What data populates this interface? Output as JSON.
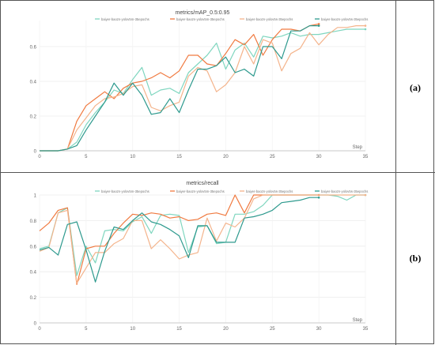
{
  "charts": [
    {
      "panel_label": "(a)",
      "title": "metrics/mAP_0.5:0.95",
      "legend": [
        "baiyer-baozn-yolov5m-35epochs",
        "baiyer-baozn-yolov5m-35epochs",
        "baiyer-baozn-yolov5s-35epochs",
        "baiyer-baozn-yolov5s-35epochs"
      ],
      "step_label": "Step",
      "x_ticks": [
        "0",
        "5",
        "10",
        "15",
        "20",
        "25",
        "30",
        "35"
      ],
      "y_ticks": [
        "0",
        "0.2",
        "0.4",
        "0.6"
      ]
    },
    {
      "panel_label": "(b)",
      "title": "metrics/recall",
      "legend": [
        "baiyer-baozn-yolov5m-35epochs",
        "baiyer-baozn-yolov5m-35epochs",
        "baiyer-baozn-yolov5s-35epochs",
        "baiyer-baozn-yolov5s-35epochs"
      ],
      "step_label": "Step",
      "x_ticks": [
        "0",
        "5",
        "10",
        "15",
        "20",
        "25",
        "30",
        "35"
      ],
      "y_ticks": [
        "0",
        "0.2",
        "0.4",
        "0.6",
        "0.8",
        "1"
      ]
    }
  ],
  "chart_data": [
    {
      "type": "line",
      "title": "metrics/mAP_0.5:0.95",
      "xlabel": "Step",
      "ylabel": "",
      "xlim": [
        0,
        35
      ],
      "ylim": [
        0,
        0.75
      ],
      "grid": true,
      "legend_position": "top",
      "series": [
        {
          "name": "baiyer-baozn-yolov5m-35epochs",
          "color": "#7fd6bf",
          "x": [
            0,
            1,
            2,
            3,
            4,
            5,
            6,
            7,
            8,
            9,
            10,
            11,
            12,
            13,
            14,
            15,
            16,
            17,
            18,
            19,
            20,
            21,
            22,
            23,
            24,
            25,
            26,
            27,
            28,
            29,
            30,
            31,
            32,
            33,
            34,
            35
          ],
          "y": [
            0,
            0,
            0,
            0.01,
            0.05,
            0.15,
            0.22,
            0.28,
            0.35,
            0.33,
            0.41,
            0.48,
            0.32,
            0.35,
            0.36,
            0.33,
            0.45,
            0.5,
            0.55,
            0.62,
            0.47,
            0.58,
            0.62,
            0.54,
            0.66,
            0.65,
            0.66,
            0.68,
            0.66,
            0.67,
            0.67,
            0.68,
            0.69,
            0.7,
            0.7,
            0.7
          ]
        },
        {
          "name": "baiyer-baozn-yolov5m-35epochs",
          "color": "#f07a40",
          "x": [
            0,
            1,
            2,
            3,
            4,
            5,
            6,
            7,
            8,
            9,
            10,
            11,
            12,
            13,
            14,
            15,
            16,
            17,
            18,
            19,
            20,
            21,
            22,
            23,
            24,
            25,
            26,
            27,
            28,
            29,
            30
          ],
          "y": [
            0,
            0,
            0,
            0.01,
            0.17,
            0.26,
            0.3,
            0.34,
            0.3,
            0.36,
            0.39,
            0.4,
            0.42,
            0.45,
            0.42,
            0.46,
            0.55,
            0.55,
            0.5,
            0.49,
            0.56,
            0.64,
            0.61,
            0.67,
            0.55,
            0.64,
            0.7,
            0.7,
            0.69,
            0.72,
            0.73
          ]
        },
        {
          "name": "baiyer-baozn-yolov5s-35epochs",
          "color": "#f4b48c",
          "x": [
            0,
            1,
            2,
            3,
            4,
            5,
            6,
            7,
            8,
            9,
            10,
            11,
            12,
            13,
            14,
            15,
            16,
            17,
            18,
            19,
            20,
            21,
            22,
            23,
            24,
            25,
            26,
            27,
            28,
            29,
            30,
            31,
            32,
            33,
            34,
            35
          ],
          "y": [
            0,
            0,
            0,
            0.01,
            0.12,
            0.19,
            0.26,
            0.3,
            0.31,
            0.33,
            0.37,
            0.38,
            0.25,
            0.23,
            0.26,
            0.28,
            0.43,
            0.48,
            0.46,
            0.34,
            0.38,
            0.45,
            0.6,
            0.5,
            0.64,
            0.62,
            0.46,
            0.56,
            0.59,
            0.68,
            0.61,
            0.67,
            0.71,
            0.71,
            0.72,
            0.72
          ]
        },
        {
          "name": "baiyer-baozn-yolov5s-35epochs",
          "color": "#2e9a8e",
          "x": [
            0,
            1,
            2,
            3,
            4,
            5,
            6,
            7,
            8,
            9,
            10,
            11,
            12,
            13,
            14,
            15,
            16,
            17,
            18,
            19,
            20,
            21,
            22,
            23,
            24,
            25,
            26,
            27,
            28,
            29,
            30
          ],
          "y": [
            0,
            0,
            0,
            0.01,
            0.03,
            0.12,
            0.2,
            0.28,
            0.39,
            0.32,
            0.39,
            0.32,
            0.21,
            0.22,
            0.3,
            0.22,
            0.35,
            0.47,
            0.47,
            0.49,
            0.54,
            0.45,
            0.47,
            0.43,
            0.6,
            0.6,
            0.53,
            0.69,
            0.69,
            0.72,
            0.72
          ]
        }
      ]
    },
    {
      "type": "line",
      "title": "metrics/recall",
      "xlabel": "Step",
      "ylabel": "",
      "xlim": [
        0,
        35
      ],
      "ylim": [
        0,
        1
      ],
      "grid": true,
      "legend_position": "top",
      "series": [
        {
          "name": "baiyer-baozn-yolov5m-35epochs",
          "color": "#7fd6bf",
          "x": [
            0,
            1,
            2,
            3,
            4,
            5,
            6,
            7,
            8,
            9,
            10,
            11,
            12,
            13,
            14,
            15,
            16,
            17,
            18,
            19,
            20,
            21,
            22,
            23,
            24,
            25,
            26,
            27,
            28,
            29,
            30,
            31,
            32,
            33,
            34,
            35
          ],
          "y": [
            0.58,
            0.6,
            0.86,
            0.9,
            0.37,
            0.6,
            0.47,
            0.72,
            0.73,
            0.72,
            0.79,
            0.83,
            0.7,
            0.84,
            0.85,
            0.84,
            0.55,
            0.75,
            0.76,
            0.62,
            0.63,
            0.85,
            0.85,
            0.87,
            0.92,
            1,
            1,
            1,
            1,
            1,
            1,
            1,
            0.99,
            0.96,
            1,
            1
          ]
        },
        {
          "name": "baiyer-baozn-yolov5m-35epochs",
          "color": "#f07a40",
          "x": [
            0,
            1,
            2,
            3,
            4,
            5,
            6,
            7,
            8,
            9,
            10,
            11,
            12,
            13,
            14,
            15,
            16,
            17,
            18,
            19,
            20,
            21,
            22,
            23,
            24,
            25,
            26,
            27,
            28,
            29,
            30
          ],
          "y": [
            0.72,
            0.78,
            0.88,
            0.9,
            0.3,
            0.58,
            0.6,
            0.6,
            0.7,
            0.78,
            0.85,
            0.84,
            0.86,
            0.85,
            0.82,
            0.83,
            0.8,
            0.81,
            0.85,
            0.86,
            0.84,
            1,
            0.86,
            1,
            1,
            1,
            1,
            1,
            1,
            1,
            1
          ]
        },
        {
          "name": "baiyer-baozn-yolov5s-35epochs",
          "color": "#f4b48c",
          "x": [
            0,
            1,
            2,
            3,
            4,
            5,
            6,
            7,
            8,
            9,
            10,
            11,
            12,
            13,
            14,
            15,
            16,
            17,
            18,
            19,
            20,
            21,
            22,
            23,
            24,
            25,
            26,
            27,
            28,
            29,
            30,
            31,
            32,
            33,
            34,
            35
          ],
          "y": [
            0.56,
            0.59,
            0.86,
            0.88,
            0.31,
            0.43,
            0.55,
            0.55,
            0.62,
            0.66,
            0.8,
            0.8,
            0.58,
            0.65,
            0.58,
            0.5,
            0.53,
            0.55,
            0.82,
            0.64,
            0.78,
            0.75,
            0.82,
            0.97,
            1,
            1,
            1,
            1,
            1,
            1,
            1,
            1,
            1,
            1,
            1,
            1
          ]
        },
        {
          "name": "baiyer-baozn-yolov5s-35epochs",
          "color": "#2e9a8e",
          "x": [
            0,
            1,
            2,
            3,
            4,
            5,
            6,
            7,
            8,
            9,
            10,
            11,
            12,
            13,
            14,
            15,
            16,
            17,
            18,
            19,
            20,
            21,
            22,
            23,
            24,
            25,
            26,
            27,
            28,
            29,
            30
          ],
          "y": [
            0.57,
            0.59,
            0.53,
            0.77,
            0.79,
            0.57,
            0.32,
            0.56,
            0.75,
            0.73,
            0.8,
            0.86,
            0.79,
            0.77,
            0.73,
            0.68,
            0.51,
            0.76,
            0.76,
            0.63,
            0.63,
            0.63,
            0.82,
            0.83,
            0.85,
            0.88,
            0.94,
            0.95,
            0.96,
            0.98,
            0.98
          ]
        }
      ]
    }
  ]
}
